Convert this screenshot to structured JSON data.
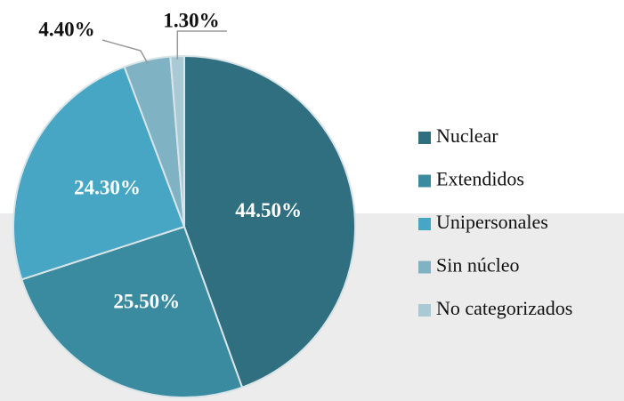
{
  "chart_data": {
    "type": "pie",
    "categories": [
      "Nuclear",
      "Extendidos",
      "Unipersonales",
      "Sin núcleo",
      "No categorizados"
    ],
    "values": [
      44.5,
      25.5,
      24.3,
      4.4,
      1.3
    ],
    "value_labels": [
      "44.50%",
      "25.50%",
      "24.30%",
      "4.40%",
      "1.30%"
    ],
    "colors": [
      "#2f6f80",
      "#3a8ba0",
      "#46a6c3",
      "#7fb3c4",
      "#a9c9d5"
    ],
    "legend": "right"
  }
}
